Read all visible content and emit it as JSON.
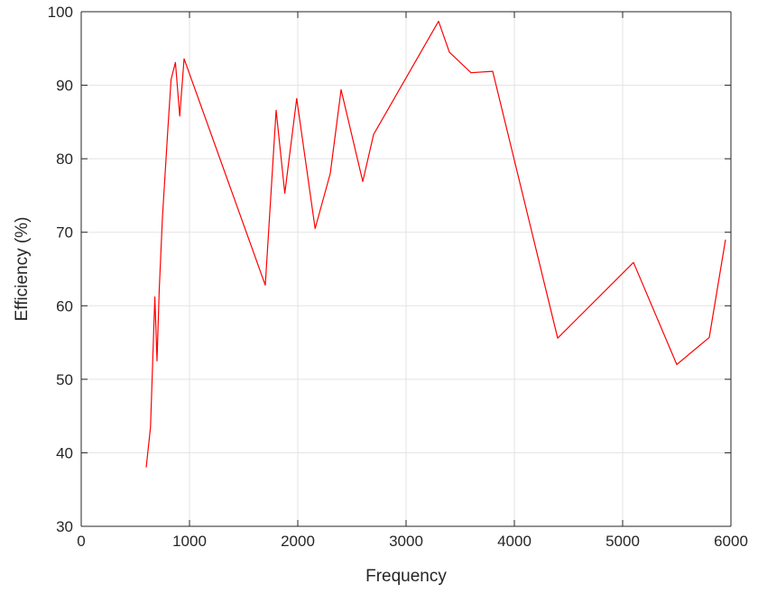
{
  "chart_data": {
    "type": "line",
    "title": "",
    "xlabel": "Frequency",
    "ylabel": "Efficiency (%)",
    "xlim": [
      0,
      6000
    ],
    "ylim": [
      30,
      100
    ],
    "xticks": [
      0,
      1000,
      2000,
      3000,
      4000,
      5000,
      6000
    ],
    "yticks": [
      30,
      40,
      50,
      60,
      70,
      80,
      90,
      100
    ],
    "grid": true,
    "legend": "none",
    "series": [
      {
        "color": "#ff0000",
        "x": [
          600,
          640,
          680,
          700,
          720,
          750,
          800,
          830,
          870,
          910,
          950,
          1700,
          1800,
          1880,
          1990,
          2160,
          2300,
          2400,
          2600,
          2700,
          3300,
          3400,
          3600,
          3800,
          4400,
          5100,
          5500,
          5800,
          5950
        ],
        "y": [
          38,
          43.5,
          61.2,
          52.5,
          62,
          72,
          84,
          90.8,
          93.1,
          85.8,
          93.6,
          62.8,
          86.6,
          75.3,
          88.2,
          70.5,
          78,
          89.4,
          76.9,
          83.3,
          98.7,
          94.5,
          91.7,
          91.9,
          55.6,
          65.9,
          52,
          55.7,
          69
        ]
      }
    ]
  }
}
